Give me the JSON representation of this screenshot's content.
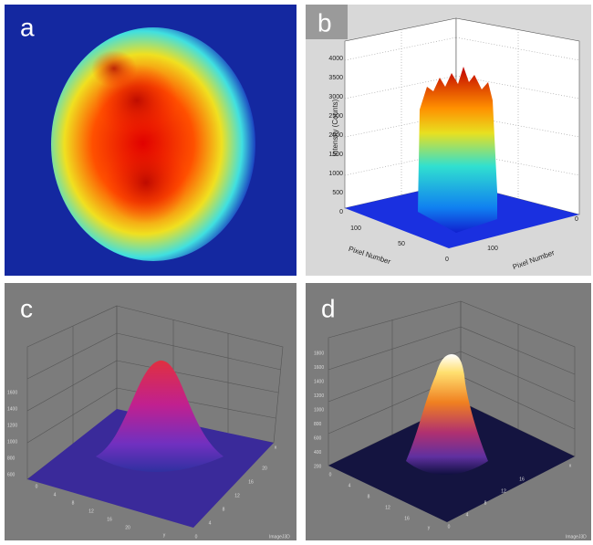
{
  "panels": [
    {
      "label": "a"
    },
    {
      "label": "b",
      "z_label": "Intensity (Counts)",
      "z_ticks": [
        "4000",
        "3500",
        "3000",
        "2500",
        "2000",
        "1500",
        "1000",
        "500",
        "0"
      ],
      "left_label": "Pixel Number",
      "left_ticks": [
        "100",
        "50",
        "0"
      ],
      "right_label": "Pixel Number",
      "right_ticks": [
        "100",
        "0"
      ]
    },
    {
      "label": "c",
      "z_ticks": [
        "1600",
        "1400",
        "1200",
        "1000",
        "800",
        "600"
      ],
      "left_ticks": [
        "0",
        "4",
        "8",
        "12",
        "16",
        "20"
      ],
      "left_label": "y",
      "right_ticks": [
        "0",
        "4",
        "8",
        "12",
        "16",
        "20"
      ],
      "right_label": "x",
      "credit": "ImageJ3D"
    },
    {
      "label": "d",
      "z_ticks": [
        "1800",
        "1600",
        "1400",
        "1200",
        "1000",
        "800",
        "600",
        "400",
        "200"
      ],
      "left_ticks": [
        "0",
        "4",
        "8",
        "12",
        "16"
      ],
      "left_label": "y",
      "right_ticks": [
        "0",
        "4",
        "8",
        "12",
        "16"
      ],
      "right_label": "x",
      "credit": "ImageJ3D"
    }
  ]
}
